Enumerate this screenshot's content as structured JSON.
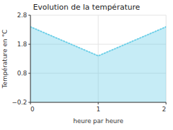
{
  "chart_data": {
    "type": "area",
    "title": "Evolution de la température",
    "xlabel": "heure par heure",
    "ylabel": "Température en °C",
    "x": [
      0,
      1,
      2
    ],
    "values": [
      2.4,
      1.4,
      2.4
    ],
    "xlim": [
      0,
      2
    ],
    "ylim": [
      -0.2,
      2.8
    ],
    "xticks": [
      0,
      1,
      2
    ],
    "yticks": [
      {
        "value": -0.2,
        "label": "−0.2"
      },
      0.8,
      1.8,
      2.8
    ],
    "color": "#70d0e8",
    "line_style": "dotted",
    "grid": true
  }
}
